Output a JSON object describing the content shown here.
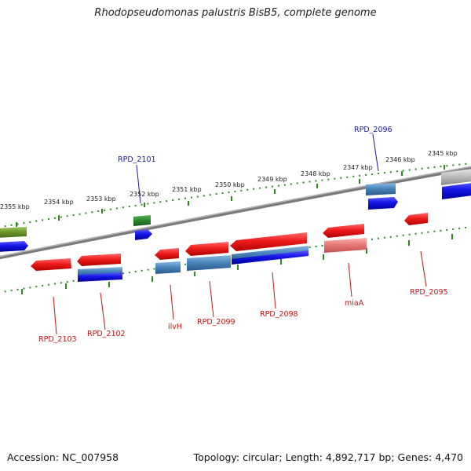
{
  "title": "Rhodopseudomonas palustris BisB5, complete genome",
  "footer": {
    "accession": "Accession: NC_007958",
    "topology": "Topology: circular; Length: 4,892,717 bp; Genes: 4,470"
  },
  "colors": {
    "tick": "#2a8a1e",
    "forward_label": "#1a1aa8",
    "reverse_label": "#cc1111",
    "red_gene": "#ee1c1c",
    "blue_gene": "#1414e6",
    "steel_gene": "#4a86bd",
    "green_gene": "#2e8a2e",
    "olive_gene": "#6e9a2a",
    "grey_gene": "#c0c0c0",
    "pink_gene": "#e87a7a"
  },
  "scale_labels": [
    "2355 kbp",
    "2354 kbp",
    "2353 kbp",
    "2352 kbp",
    "2351 kbp",
    "2350 kbp",
    "2349 kbp",
    "2348 kbp",
    "2347 kbp",
    "2346 kbp",
    "2345 kbp"
  ],
  "forward_labels": [
    "RPD_2101",
    "RPD_2096"
  ],
  "reverse_labels": [
    "RPD_2103",
    "RPD_2102",
    "ilvH",
    "RPD_2099",
    "RPD_2098",
    "miaA",
    "RPD_2095"
  ]
}
